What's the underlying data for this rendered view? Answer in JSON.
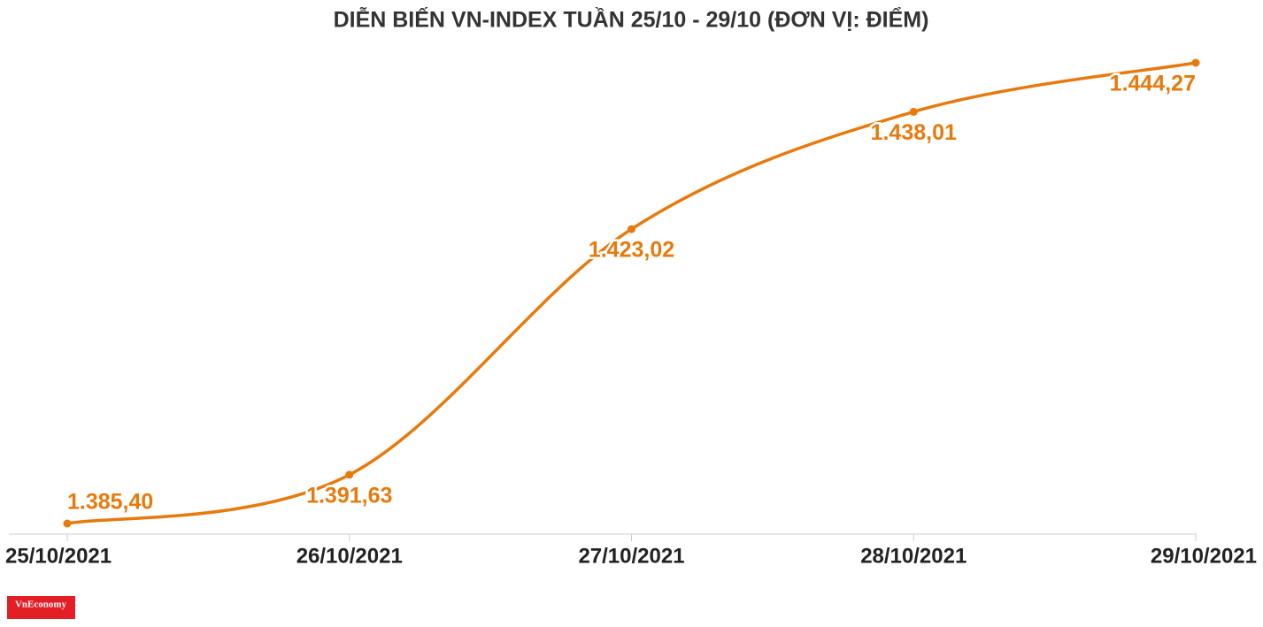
{
  "chart_data": {
    "type": "line",
    "title": "DIỄN BIẾN VN-INDEX TUẦN 25/10 - 29/10 (ĐƠN VỊ: ĐIỂM)",
    "categories": [
      "25/10/2021",
      "26/10/2021",
      "27/10/2021",
      "28/10/2021",
      "29/10/2021"
    ],
    "series": [
      {
        "name": "VN-Index",
        "color": "#e8790c",
        "values": [
          1385.4,
          1391.63,
          1423.02,
          1438.01,
          1444.27
        ],
        "value_labels": [
          "1.385,40",
          "1.391,63",
          "1.423,02",
          "1.438,01",
          "1.444,27"
        ]
      }
    ],
    "logo": "VnEconomy"
  }
}
